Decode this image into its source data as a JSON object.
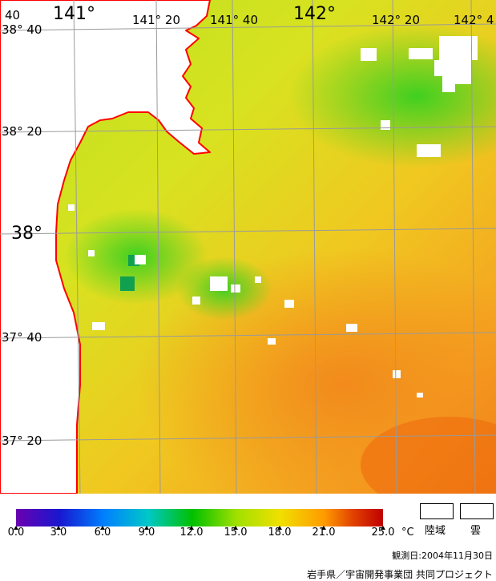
{
  "map": {
    "lon_labels": [
      "141°",
      "141° 20",
      "141° 40",
      "142°",
      "142° 20",
      "142° 4"
    ],
    "lat_labels": [
      "38° 40",
      "38° 20",
      "38°",
      "37° 40",
      "37° 20"
    ],
    "corner_label": "40",
    "coastline_color": "#ff0000",
    "grid_color": "#9a9a9a"
  },
  "legend": {
    "ticks": [
      "0.0",
      "3.0",
      "6.0",
      "9.0",
      "12.0",
      "15.0",
      "18.0",
      "21.0",
      "25.0"
    ],
    "unit": "°C",
    "colors": [
      "#6a00b0",
      "#1818d0",
      "#0080ff",
      "#00c8c8",
      "#00c000",
      "#a0e000",
      "#f0e000",
      "#ff9a00",
      "#e04000",
      "#c00000"
    ],
    "land_label": "陸域",
    "cloud_label": "雲"
  },
  "observation_date": "観測日:2004年11月30日",
  "credit": "岩手県／宇宙開発事業団 共同プロジェクト"
}
